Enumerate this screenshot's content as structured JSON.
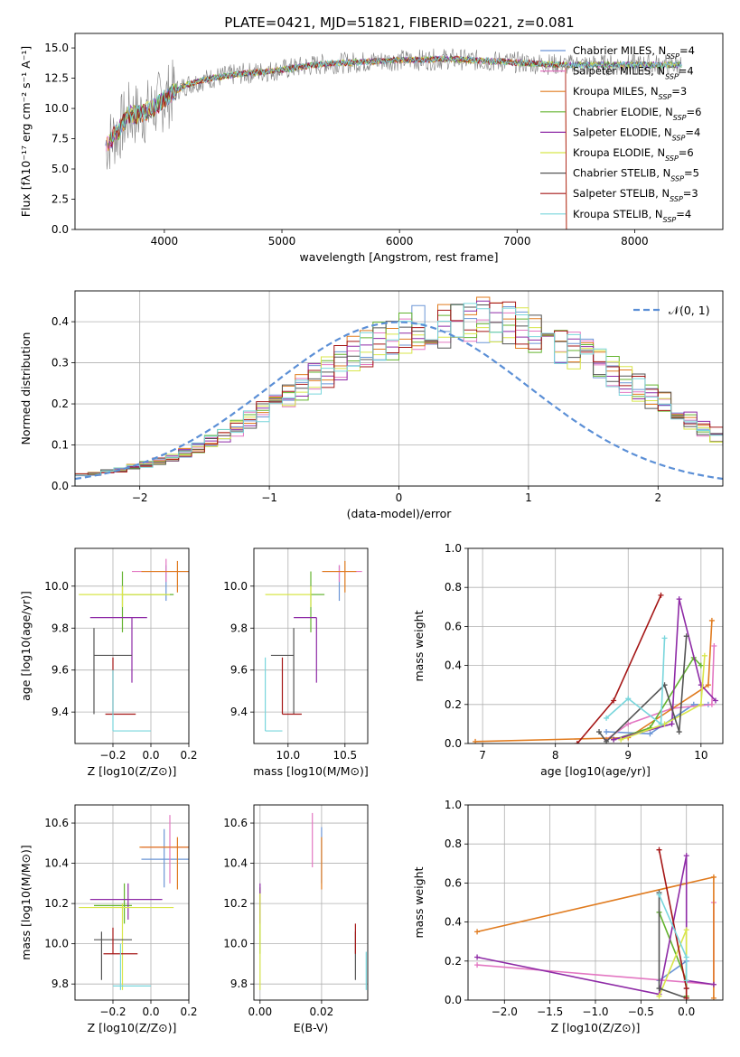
{
  "figure_title": "PLATE=0421, MJD=51821, FIBERID=0221, z=0.081",
  "models": [
    {
      "name": "Chabrier MILES, N",
      "sub": "SSP",
      "tail": "=4",
      "color": "#6b95d6"
    },
    {
      "name": "Salpeter MILES, N",
      "sub": "SSP",
      "tail": "=4",
      "color": "#e377c2"
    },
    {
      "name": "Kroupa MILES, N",
      "sub": "SSP",
      "tail": "=3",
      "color": "#e07b1f"
    },
    {
      "name": "Chabrier ELODIE, N",
      "sub": "SSP",
      "tail": "=6",
      "color": "#63b32e"
    },
    {
      "name": "Salpeter ELODIE, N",
      "sub": "SSP",
      "tail": "=4",
      "color": "#8e2aa6"
    },
    {
      "name": "Kroupa ELODIE, N",
      "sub": "SSP",
      "tail": "=6",
      "color": "#d8e64a"
    },
    {
      "name": "Chabrier STELIB, N",
      "sub": "SSP",
      "tail": "=5",
      "color": "#555555"
    },
    {
      "name": "Salpeter STELIB, N",
      "sub": "SSP",
      "tail": "=3",
      "color": "#a51616"
    },
    {
      "name": "Kroupa STELIB, N",
      "sub": "SSP",
      "tail": "=4",
      "color": "#79d6dc"
    }
  ],
  "chart_data": [
    {
      "id": "spectrum",
      "type": "line",
      "xlabel": "wavelength [Angstrom, rest frame]",
      "ylabel": "Flux [fλ10⁻¹⁷ erg cm⁻² s⁻¹ A⁻¹]",
      "xlim": [
        3240,
        8750
      ],
      "ylim": [
        0,
        16.2
      ],
      "xticks": [
        4000,
        5000,
        6000,
        7000,
        8000
      ],
      "yticks": [
        0.0,
        2.5,
        5.0,
        7.5,
        10.0,
        12.5,
        15.0
      ],
      "grid": false,
      "legend": "right",
      "data_profile": {
        "x": [
          3500,
          3600,
          3700,
          3800,
          3900,
          4000,
          4100,
          4200,
          4400,
          4600,
          4800,
          5000,
          5200,
          5400,
          5600,
          5800,
          6000,
          6200,
          6400,
          6600,
          6800,
          7000,
          7200,
          7400
        ],
        "y": [
          7.0,
          8.0,
          9.5,
          9.5,
          10.0,
          10.8,
          11.5,
          12.0,
          12.5,
          12.8,
          13.0,
          13.2,
          13.5,
          13.7,
          13.8,
          13.9,
          14.0,
          14.0,
          14.1,
          14.0,
          13.9,
          13.8,
          13.7,
          13.6
        ]
      }
    },
    {
      "id": "residuals",
      "type": "area",
      "xlabel": "(data-model)/error",
      "ylabel": "Normed distribution",
      "xlim": [
        -2.5,
        2.5
      ],
      "ylim": [
        0,
        0.475
      ],
      "xticks": [
        -2,
        -1,
        0,
        1,
        2
      ],
      "yticks": [
        0.0,
        0.1,
        0.2,
        0.3,
        0.4
      ],
      "grid": true,
      "legend": "top-right",
      "legend_label": "𝒩(0, 1)",
      "bin_width": 0.1,
      "hist_approx": [
        0.027,
        0.03,
        0.035,
        0.04,
        0.046,
        0.053,
        0.06,
        0.068,
        0.08,
        0.095,
        0.11,
        0.125,
        0.14,
        0.16,
        0.18,
        0.2,
        0.22,
        0.24,
        0.26,
        0.28,
        0.3,
        0.32,
        0.335,
        0.35,
        0.36,
        0.375,
        0.385,
        0.39,
        0.395,
        0.4,
        0.4,
        0.4,
        0.395,
        0.39,
        0.385,
        0.375,
        0.36,
        0.35,
        0.335,
        0.32,
        0.3,
        0.28,
        0.26,
        0.24,
        0.22,
        0.2,
        0.18,
        0.16,
        0.14,
        0.125,
        0.11
      ]
    },
    {
      "id": "age-vs-Z",
      "type": "scatter",
      "xlabel": "Z [log10(Z/Z⊙)]",
      "ylabel": "age  [log10(age/yr)]",
      "xlim": [
        -0.4,
        0.2
      ],
      "ylim": [
        9.25,
        10.18
      ],
      "xticks": [
        -0.2,
        0.0,
        0.2
      ],
      "yticks": [
        9.4,
        9.6,
        9.8,
        10.0
      ],
      "grid": true,
      "points": [
        {
          "m": 0,
          "x": 0.08,
          "y": 9.97,
          "xe": [
            0.08,
            0.08
          ],
          "ye": [
            9.93,
            10.1
          ]
        },
        {
          "m": 1,
          "x": 0.08,
          "y": 10.07,
          "xe": [
            -0.1,
            0.2
          ],
          "ye": [
            10.02,
            10.13
          ]
        },
        {
          "m": 2,
          "x": 0.14,
          "y": 10.07,
          "xe": [
            -0.05,
            0.2
          ],
          "ye": [
            9.97,
            10.12
          ]
        },
        {
          "m": 3,
          "x": -0.15,
          "y": 9.96,
          "xe": [
            -0.15,
            0.12
          ],
          "ye": [
            9.78,
            10.07
          ]
        },
        {
          "m": 4,
          "x": -0.1,
          "y": 9.85,
          "xe": [
            -0.32,
            -0.02
          ],
          "ye": [
            9.54,
            9.85
          ]
        },
        {
          "m": 5,
          "x": -0.15,
          "y": 9.96,
          "xe": [
            -0.38,
            0.1
          ],
          "ye": [
            9.9,
            10.0
          ]
        },
        {
          "m": 6,
          "x": -0.3,
          "y": 9.67,
          "xe": [
            -0.3,
            -0.1
          ],
          "ye": [
            9.39,
            9.8
          ]
        },
        {
          "m": 7,
          "x": -0.2,
          "y": 9.39,
          "xe": [
            -0.24,
            -0.08
          ],
          "ye": [
            9.39,
            9.66
          ]
        },
        {
          "m": 8,
          "x": -0.2,
          "y": 9.31,
          "xe": [
            -0.2,
            0.0
          ],
          "ye": [
            9.31,
            9.6
          ]
        }
      ]
    },
    {
      "id": "age-vs-mass",
      "type": "scatter",
      "xlabel": "mass [log10(M/M⊙)]",
      "ylabel": "",
      "xlim": [
        9.7,
        10.7
      ],
      "ylim": [
        9.25,
        10.18
      ],
      "xticks": [
        10.0,
        10.5
      ],
      "yticks": [
        9.4,
        9.6,
        9.8,
        10.0
      ],
      "grid": true,
      "points": [
        {
          "m": 0,
          "x": 10.45,
          "y": 9.97,
          "xe": [
            10.45,
            10.45
          ],
          "ye": [
            9.93,
            10.1
          ]
        },
        {
          "m": 1,
          "x": 10.45,
          "y": 10.07,
          "xe": [
            10.3,
            10.65
          ],
          "ye": [
            10.02,
            10.1
          ]
        },
        {
          "m": 2,
          "x": 10.5,
          "y": 10.07,
          "xe": [
            10.3,
            10.6
          ],
          "ye": [
            9.97,
            10.12
          ]
        },
        {
          "m": 3,
          "x": 10.2,
          "y": 9.96,
          "xe": [
            10.2,
            10.32
          ],
          "ye": [
            9.78,
            10.07
          ]
        },
        {
          "m": 4,
          "x": 10.25,
          "y": 9.85,
          "xe": [
            10.05,
            10.25
          ],
          "ye": [
            9.54,
            9.85
          ]
        },
        {
          "m": 5,
          "x": 10.2,
          "y": 9.96,
          "xe": [
            9.8,
            10.2
          ],
          "ye": [
            9.9,
            10.0
          ]
        },
        {
          "m": 6,
          "x": 10.05,
          "y": 9.67,
          "xe": [
            9.85,
            10.05
          ],
          "ye": [
            9.39,
            9.8
          ]
        },
        {
          "m": 7,
          "x": 9.95,
          "y": 9.39,
          "xe": [
            9.95,
            10.12
          ],
          "ye": [
            9.39,
            9.66
          ]
        },
        {
          "m": 8,
          "x": 9.8,
          "y": 9.31,
          "xe": [
            9.8,
            9.95
          ],
          "ye": [
            9.31,
            9.66
          ]
        }
      ]
    },
    {
      "id": "weight-vs-age",
      "type": "line",
      "xlabel": "age  [log10(age/yr)]",
      "ylabel": "mass weight",
      "xlim": [
        6.8,
        10.3
      ],
      "ylim": [
        0,
        1.0
      ],
      "xticks": [
        7,
        8,
        9,
        10
      ],
      "yticks": [
        0.0,
        0.2,
        0.4,
        0.6,
        0.8,
        1.0
      ],
      "grid": true,
      "series": [
        {
          "m": 0,
          "x": [
            8.7,
            9.3,
            9.9,
            10.1
          ],
          "y": [
            0.06,
            0.05,
            0.2,
            0.2
          ]
        },
        {
          "m": 1,
          "x": [
            8.7,
            9.0,
            9.6,
            10.15,
            10.18
          ],
          "y": [
            0.02,
            0.1,
            0.18,
            0.2,
            0.5
          ]
        },
        {
          "m": 2,
          "x": [
            6.9,
            9.0,
            10.1,
            10.15
          ],
          "y": [
            0.01,
            0.03,
            0.3,
            0.63
          ]
        },
        {
          "m": 3,
          "x": [
            8.8,
            9.3,
            9.9,
            10.0
          ],
          "y": [
            0.02,
            0.08,
            0.44,
            0.4
          ]
        },
        {
          "m": 4,
          "x": [
            8.8,
            9.6,
            9.7,
            10.0,
            10.2
          ],
          "y": [
            0.02,
            0.1,
            0.74,
            0.3,
            0.22
          ]
        },
        {
          "m": 5,
          "x": [
            8.9,
            9.5,
            10.0,
            10.05
          ],
          "y": [
            0.02,
            0.1,
            0.2,
            0.45
          ]
        },
        {
          "m": 6,
          "x": [
            8.6,
            8.7,
            9.5,
            9.7,
            9.8
          ],
          "y": [
            0.06,
            0.01,
            0.3,
            0.06,
            0.55
          ]
        },
        {
          "m": 7,
          "x": [
            8.3,
            8.8,
            9.45
          ],
          "y": [
            0.0,
            0.22,
            0.76
          ]
        },
        {
          "m": 8,
          "x": [
            8.7,
            9.0,
            9.45,
            9.5
          ],
          "y": [
            0.13,
            0.23,
            0.1,
            0.54
          ]
        }
      ]
    },
    {
      "id": "mass-vs-Z",
      "type": "scatter",
      "xlabel": "Z [log10(Z/Z⊙)]",
      "ylabel": "mass [log10(M/M⊙)]",
      "xlim": [
        -0.4,
        0.2
      ],
      "ylim": [
        9.72,
        10.69
      ],
      "xticks": [
        -0.2,
        0.0,
        0.2
      ],
      "yticks": [
        9.8,
        10.0,
        10.2,
        10.4,
        10.6
      ],
      "grid": true,
      "points": [
        {
          "m": 0,
          "x": 0.07,
          "y": 10.42,
          "xe": [
            -0.05,
            0.2
          ],
          "ye": [
            10.28,
            10.57
          ]
        },
        {
          "m": 1,
          "x": 0.1,
          "y": 10.48,
          "xe": [
            -0.05,
            0.2
          ],
          "ye": [
            10.3,
            10.64
          ]
        },
        {
          "m": 2,
          "x": 0.14,
          "y": 10.48,
          "xe": [
            -0.06,
            0.2
          ],
          "ye": [
            10.27,
            10.53
          ]
        },
        {
          "m": 3,
          "x": -0.14,
          "y": 10.19,
          "xe": [
            -0.3,
            -0.1
          ],
          "ye": [
            10.1,
            10.3
          ]
        },
        {
          "m": 4,
          "x": -0.12,
          "y": 10.22,
          "xe": [
            -0.32,
            0.06
          ],
          "ye": [
            10.12,
            10.3
          ]
        },
        {
          "m": 5,
          "x": -0.15,
          "y": 10.18,
          "xe": [
            -0.38,
            0.12
          ],
          "ye": [
            9.77,
            10.2
          ]
        },
        {
          "m": 6,
          "x": -0.26,
          "y": 10.02,
          "xe": [
            -0.3,
            -0.1
          ],
          "ye": [
            9.82,
            10.06
          ]
        },
        {
          "m": 7,
          "x": -0.2,
          "y": 9.95,
          "xe": [
            -0.25,
            -0.07
          ],
          "ye": [
            9.95,
            10.08
          ]
        },
        {
          "m": 8,
          "x": -0.16,
          "y": 9.79,
          "xe": [
            -0.2,
            0.0
          ],
          "ye": [
            9.77,
            10.0
          ]
        }
      ]
    },
    {
      "id": "mass-vs-EBV",
      "type": "scatter",
      "xlabel": "E(B-V)",
      "ylabel": "",
      "xlim": [
        -0.002,
        0.035
      ],
      "ylim": [
        9.72,
        10.69
      ],
      "xticks": [
        0.0,
        0.02
      ],
      "yticks": [
        9.8,
        10.0,
        10.2,
        10.4,
        10.6
      ],
      "grid": true,
      "points": [
        {
          "m": 0,
          "x": 0.02,
          "y": 10.45,
          "xe": [
            0.02,
            0.02
          ],
          "ye": [
            10.3,
            10.58
          ]
        },
        {
          "m": 1,
          "x": 0.017,
          "y": 10.5,
          "xe": [
            0.017,
            0.017
          ],
          "ye": [
            10.38,
            10.65
          ]
        },
        {
          "m": 2,
          "x": 0.02,
          "y": 10.45,
          "xe": [
            0.02,
            0.02
          ],
          "ye": [
            10.27,
            10.53
          ]
        },
        {
          "m": 3,
          "x": 0.0,
          "y": 10.2,
          "xe": [
            0.0,
            0.0
          ],
          "ye": [
            9.95,
            10.28
          ]
        },
        {
          "m": 4,
          "x": 0.0,
          "y": 10.22,
          "xe": [
            0.0,
            0.0
          ],
          "ye": [
            10.1,
            10.3
          ]
        },
        {
          "m": 5,
          "x": 0.0,
          "y": 10.18,
          "xe": [
            0.0,
            0.0
          ],
          "ye": [
            9.77,
            10.25
          ]
        },
        {
          "m": 6,
          "x": 0.031,
          "y": 10.02,
          "xe": [
            0.031,
            0.031
          ],
          "ye": [
            9.82,
            10.06
          ]
        },
        {
          "m": 7,
          "x": 0.031,
          "y": 9.95,
          "xe": [
            0.031,
            0.031
          ],
          "ye": [
            9.95,
            10.1
          ]
        },
        {
          "m": 8,
          "x": 0.0345,
          "y": 9.79,
          "xe": [
            0.0345,
            0.0345
          ],
          "ye": [
            9.77,
            9.96
          ]
        }
      ]
    },
    {
      "id": "weight-vs-Z",
      "type": "line",
      "xlabel": "Z [log10(Z/Z⊙)]",
      "ylabel": "mass weight",
      "xlim": [
        -2.4,
        0.4
      ],
      "ylim": [
        0,
        1.0
      ],
      "xticks": [
        -2.0,
        -1.5,
        -1.0,
        -0.5,
        0.0
      ],
      "yticks": [
        0.0,
        0.2,
        0.4,
        0.6,
        0.8,
        1.0
      ],
      "grid": true,
      "series": [
        {
          "m": 0,
          "x": [
            -0.3,
            0.0,
            0.0
          ],
          "y": [
            0.1,
            0.2,
            0.06
          ]
        },
        {
          "m": 1,
          "x": [
            -2.3,
            0.3,
            0.3
          ],
          "y": [
            0.18,
            0.08,
            0.5
          ]
        },
        {
          "m": 2,
          "x": [
            -2.3,
            0.3,
            0.3
          ],
          "y": [
            0.35,
            0.63,
            0.01
          ]
        },
        {
          "m": 3,
          "x": [
            -0.3,
            0.0,
            0.0
          ],
          "y": [
            0.45,
            0.1,
            0.02
          ]
        },
        {
          "m": 4,
          "x": [
            -2.3,
            -0.3,
            0.0,
            0.0,
            0.3
          ],
          "y": [
            0.22,
            0.03,
            0.74,
            0.1,
            0.08
          ]
        },
        {
          "m": 5,
          "x": [
            -0.3,
            0.0,
            0.0
          ],
          "y": [
            0.02,
            0.36,
            0.1
          ]
        },
        {
          "m": 6,
          "x": [
            -0.3,
            -0.3,
            0.0
          ],
          "y": [
            0.55,
            0.06,
            0.01
          ]
        },
        {
          "m": 7,
          "x": [
            -0.3,
            0.0,
            0.0
          ],
          "y": [
            0.77,
            0.06,
            0.01
          ]
        },
        {
          "m": 8,
          "x": [
            -0.3,
            0.0,
            0.0
          ],
          "y": [
            0.54,
            0.22,
            0.1
          ]
        }
      ]
    }
  ]
}
